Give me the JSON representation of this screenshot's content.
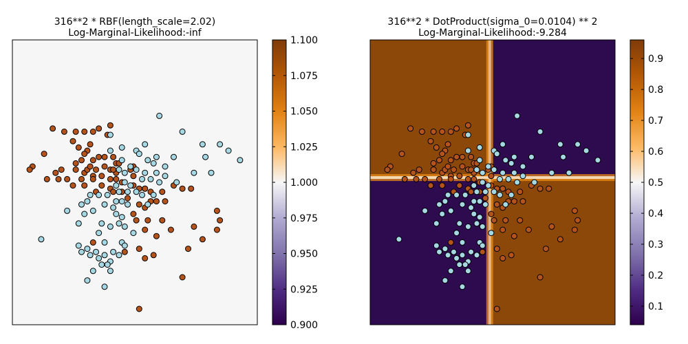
{
  "chart_data": [
    {
      "type": "scatter",
      "title_line1": "316**2 * RBF(length_scale=2.02)",
      "title_line2": "Log-Marginal-Likelihood:-inf",
      "background_color": "#f7f6f6",
      "x_ticks_shown": false,
      "y_ticks_shown": false,
      "colorbar": {
        "range": [
          0.9,
          1.1
        ],
        "ticks": [
          "0.900",
          "0.925",
          "0.950",
          "0.975",
          "1.000",
          "1.025",
          "1.050",
          "1.075",
          "1.100"
        ]
      },
      "series": [
        {
          "color": "#b4541c",
          "points": [
            [
              -2.6,
              1.7
            ],
            [
              -2.2,
              1.6
            ],
            [
              -1.8,
              1.6
            ],
            [
              -1.5,
              1.6
            ],
            [
              -1.2,
              1.6
            ],
            [
              -1.0,
              1.7
            ],
            [
              -0.6,
              1.8
            ],
            [
              -0.7,
              1.5
            ],
            [
              -1.9,
              1.3
            ],
            [
              -1.7,
              1.1
            ],
            [
              -1.3,
              1.2
            ],
            [
              -1.4,
              1.0
            ],
            [
              -2.9,
              0.9
            ],
            [
              -3.3,
              0.5
            ],
            [
              -3.4,
              0.4
            ],
            [
              -2.3,
              0.4
            ],
            [
              -1.8,
              0.6
            ],
            [
              -1.6,
              0.7
            ],
            [
              -1.5,
              0.9
            ],
            [
              -1.2,
              0.7
            ],
            [
              -1.0,
              0.8
            ],
            [
              -0.8,
              0.8
            ],
            [
              -0.5,
              0.8
            ],
            [
              -0.4,
              0.6
            ],
            [
              -1.8,
              0.4
            ],
            [
              -1.5,
              0.3
            ],
            [
              -1.4,
              0.4
            ],
            [
              -1.3,
              0.5
            ],
            [
              -1.1,
              0.4
            ],
            [
              -0.8,
              0.5
            ],
            [
              -0.6,
              0.4
            ],
            [
              -0.4,
              0.3
            ],
            [
              -2.5,
              0.3
            ],
            [
              -2.1,
              0.1
            ],
            [
              -1.6,
              0.1
            ],
            [
              -1.2,
              0.2
            ],
            [
              -0.9,
              0.2
            ],
            [
              -0.6,
              0.1
            ],
            [
              -0.4,
              0.1
            ],
            [
              -0.2,
              0.0
            ],
            [
              -2.8,
              0.1
            ],
            [
              -2.4,
              0.1
            ],
            [
              -1.9,
              -0.1
            ],
            [
              -1.1,
              -0.3
            ],
            [
              -0.6,
              -0.2
            ],
            [
              -0.5,
              -0.3
            ],
            [
              -0.2,
              -0.3
            ],
            [
              0.2,
              -0.1
            ],
            [
              0.4,
              -0.2
            ],
            [
              0.6,
              -0.2
            ],
            [
              0.8,
              -0.3
            ],
            [
              1.2,
              -0.3
            ],
            [
              1.6,
              -0.1
            ],
            [
              1.9,
              -0.2
            ],
            [
              2.2,
              -0.2
            ],
            [
              0.0,
              -0.5
            ],
            [
              0.4,
              -0.7
            ],
            [
              0.6,
              -0.8
            ],
            [
              0.8,
              -0.6
            ],
            [
              1.0,
              -0.6
            ],
            [
              1.3,
              -0.6
            ],
            [
              0.2,
              -1.0
            ],
            [
              0.3,
              -1.2
            ],
            [
              0.7,
              -1.2
            ],
            [
              1.2,
              -1.2
            ],
            [
              0.6,
              -1.5
            ],
            [
              1.0,
              -1.7
            ],
            [
              1.5,
              -1.5
            ],
            [
              2.3,
              -1.4
            ],
            [
              3.1,
              -0.9
            ],
            [
              3.2,
              -1.2
            ],
            [
              3.1,
              -1.5
            ],
            [
              2.6,
              -1.8
            ],
            [
              2.1,
              -2.1
            ],
            [
              -1.2,
              -1.9
            ],
            [
              -0.1,
              -2.2
            ],
            [
              0.6,
              -2.4
            ],
            [
              0.4,
              -2.1
            ],
            [
              0.9,
              -2.3
            ],
            [
              1.9,
              -3.0
            ],
            [
              0.4,
              -4.0
            ],
            [
              0.1,
              0.4
            ],
            [
              0.2,
              0.5
            ],
            [
              0.2,
              0.2
            ],
            [
              0.6,
              -0.2
            ],
            [
              -1.5,
              -0.1
            ],
            [
              -0.9,
              -0.1
            ],
            [
              -1.2,
              0.1
            ],
            [
              -0.3,
              0.6
            ],
            [
              -0.5,
              0.4
            ]
          ]
        },
        {
          "color": "#a6d8e3",
          "points": [
            [
              1.1,
              2.1
            ],
            [
              -0.6,
              1.5
            ],
            [
              1.9,
              1.6
            ],
            [
              2.6,
              1.2
            ],
            [
              3.2,
              1.2
            ],
            [
              3.5,
              1.0
            ],
            [
              0.6,
              1.2
            ],
            [
              0.3,
              1.0
            ],
            [
              -0.2,
              1.1
            ],
            [
              -0.6,
              1.0
            ],
            [
              1.0,
              0.8
            ],
            [
              1.6,
              0.8
            ],
            [
              2.7,
              0.8
            ],
            [
              3.9,
              0.7
            ],
            [
              0.4,
              0.9
            ],
            [
              0.7,
              0.7
            ],
            [
              0.9,
              0.6
            ],
            [
              1.3,
              0.5
            ],
            [
              -0.2,
              0.7
            ],
            [
              0.1,
              0.5
            ],
            [
              0.3,
              0.4
            ],
            [
              0.6,
              0.3
            ],
            [
              1.0,
              0.3
            ],
            [
              1.3,
              0.2
            ],
            [
              2.3,
              0.3
            ],
            [
              2.9,
              0.3
            ],
            [
              0.5,
              0.1
            ],
            [
              0.8,
              0.1
            ],
            [
              1.1,
              0.0
            ],
            [
              1.7,
              0.0
            ],
            [
              -0.3,
              0.4
            ],
            [
              -0.1,
              0.3
            ],
            [
              -0.4,
              -0.1
            ],
            [
              -0.1,
              0.0
            ],
            [
              -0.3,
              -0.3
            ],
            [
              -0.7,
              -0.4
            ],
            [
              -1.0,
              -0.4
            ],
            [
              -0.4,
              -0.6
            ],
            [
              0.0,
              -0.3
            ],
            [
              -1.4,
              -0.6
            ],
            [
              -1.6,
              -0.7
            ],
            [
              -2.1,
              -0.9
            ],
            [
              -1.5,
              -1.0
            ],
            [
              -1.7,
              -1.3
            ],
            [
              -1.2,
              -0.9
            ],
            [
              -0.8,
              -0.7
            ],
            [
              -0.5,
              -0.8
            ],
            [
              -0.4,
              -1.0
            ],
            [
              -0.9,
              -1.3
            ],
            [
              -0.3,
              -1.3
            ],
            [
              -0.6,
              -1.4
            ],
            [
              -0.1,
              -1.4
            ],
            [
              -3.0,
              -1.8
            ],
            [
              -1.7,
              -2.0
            ],
            [
              -1.4,
              -2.1
            ],
            [
              -1.1,
              -2.2
            ],
            [
              -1.3,
              -2.3
            ],
            [
              -0.8,
              -2.3
            ],
            [
              -0.5,
              -2.2
            ],
            [
              -0.3,
              -2.3
            ],
            [
              -1.0,
              -2.4
            ],
            [
              -0.6,
              -2.5
            ],
            [
              -0.9,
              -2.6
            ],
            [
              -1.2,
              -2.8
            ],
            [
              -0.6,
              -2.8
            ],
            [
              -1.4,
              -3.1
            ],
            [
              -0.8,
              -3.3
            ],
            [
              -0.7,
              -2.6
            ],
            [
              -1.6,
              -2.2
            ],
            [
              -0.2,
              -1.9
            ],
            [
              -0.1,
              -2.0
            ],
            [
              0.2,
              -1.6
            ],
            [
              -0.8,
              -1.9
            ],
            [
              -1.0,
              -1.6
            ],
            [
              0.3,
              -0.3
            ],
            [
              0.0,
              -0.7
            ],
            [
              -1.3,
              -0.4
            ],
            [
              -0.2,
              -0.6
            ],
            [
              0.7,
              -0.7
            ],
            [
              0.1,
              -0.1
            ],
            [
              0.5,
              -0.4
            ],
            [
              0.9,
              -0.4
            ],
            [
              -0.2,
              -1.1
            ]
          ]
        }
      ]
    },
    {
      "type": "scatter",
      "title_line1": "316**2 * DotProduct(sigma_0=0.0104) ** 2",
      "title_line2": "Log-Marginal-Likelihood:-9.284",
      "colorbar": {
        "range": [
          0.04,
          0.96
        ],
        "ticks": [
          "0.1",
          "0.2",
          "0.3",
          "0.4",
          "0.5",
          "0.6",
          "0.7",
          "0.8",
          "0.9"
        ]
      },
      "colors": {
        "dark": "#2e0a4f",
        "brown": "#8c4809",
        "orange": "#e88a17",
        "light": "#f7e3c4"
      }
    }
  ]
}
